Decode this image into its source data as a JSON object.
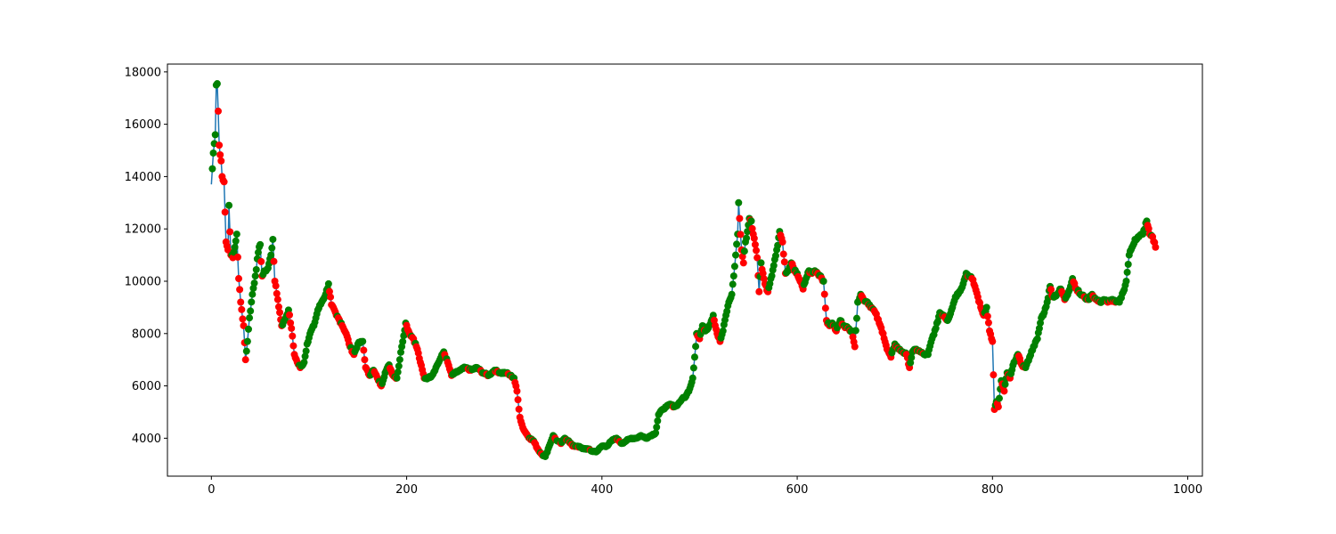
{
  "chart_data": {
    "type": "line",
    "title": "",
    "xlabel": "",
    "ylabel": "",
    "xlim": [
      -45,
      1015
    ],
    "ylim": [
      2550,
      18300
    ],
    "x_ticks": [
      0,
      200,
      400,
      600,
      800,
      1000
    ],
    "y_ticks": [
      4000,
      6000,
      8000,
      10000,
      12000,
      14000,
      16000,
      18000
    ],
    "grid": false,
    "legend": "none",
    "line_color": "#1f77b4",
    "marker_colors": {
      "up": "#008000",
      "down": "#ff0000"
    },
    "series": [
      {
        "anchors": [
          [
            0,
            13700
          ],
          [
            2,
            14900
          ],
          [
            4,
            15600
          ],
          [
            5,
            17500
          ],
          [
            6,
            17550
          ],
          [
            7,
            16500
          ],
          [
            8,
            15200
          ],
          [
            10,
            14600
          ],
          [
            11,
            14000
          ],
          [
            13,
            13800
          ],
          [
            15,
            11500
          ],
          [
            17,
            11200
          ],
          [
            18,
            12900
          ],
          [
            20,
            11000
          ],
          [
            22,
            10900
          ],
          [
            24,
            11300
          ],
          [
            26,
            11800
          ],
          [
            28,
            10100
          ],
          [
            30,
            9200
          ],
          [
            33,
            8300
          ],
          [
            35,
            7000
          ],
          [
            37,
            7700
          ],
          [
            39,
            8600
          ],
          [
            42,
            9500
          ],
          [
            45,
            10200
          ],
          [
            48,
            11100
          ],
          [
            50,
            11400
          ],
          [
            52,
            10200
          ],
          [
            55,
            10400
          ],
          [
            58,
            10500
          ],
          [
            61,
            11000
          ],
          [
            63,
            11600
          ],
          [
            65,
            10000
          ],
          [
            68,
            9300
          ],
          [
            72,
            8300
          ],
          [
            75,
            8500
          ],
          [
            79,
            8900
          ],
          [
            82,
            8200
          ],
          [
            85,
            7200
          ],
          [
            88,
            6900
          ],
          [
            91,
            6700
          ],
          [
            95,
            6900
          ],
          [
            98,
            7600
          ],
          [
            102,
            8100
          ],
          [
            105,
            8300
          ],
          [
            109,
            8900
          ],
          [
            113,
            9200
          ],
          [
            117,
            9500
          ],
          [
            120,
            9900
          ],
          [
            123,
            9100
          ],
          [
            128,
            8700
          ],
          [
            133,
            8400
          ],
          [
            138,
            8000
          ],
          [
            142,
            7500
          ],
          [
            146,
            7200
          ],
          [
            150,
            7600
          ],
          [
            155,
            7700
          ],
          [
            158,
            6700
          ],
          [
            162,
            6400
          ],
          [
            166,
            6600
          ],
          [
            170,
            6300
          ],
          [
            174,
            6000
          ],
          [
            178,
            6500
          ],
          [
            182,
            6800
          ],
          [
            186,
            6400
          ],
          [
            190,
            6300
          ],
          [
            195,
            7500
          ],
          [
            199,
            8400
          ],
          [
            203,
            8000
          ],
          [
            207,
            7800
          ],
          [
            211,
            7400
          ],
          [
            214,
            6900
          ],
          [
            218,
            6300
          ],
          [
            222,
            6300
          ],
          [
            226,
            6400
          ],
          [
            230,
            6700
          ],
          [
            234,
            7000
          ],
          [
            238,
            7300
          ],
          [
            242,
            6900
          ],
          [
            246,
            6400
          ],
          [
            250,
            6500
          ],
          [
            255,
            6600
          ],
          [
            260,
            6700
          ],
          [
            266,
            6600
          ],
          [
            272,
            6700
          ],
          [
            278,
            6500
          ],
          [
            284,
            6400
          ],
          [
            290,
            6600
          ],
          [
            296,
            6500
          ],
          [
            302,
            6500
          ],
          [
            306,
            6400
          ],
          [
            310,
            6300
          ],
          [
            313,
            5800
          ],
          [
            316,
            4800
          ],
          [
            319,
            4400
          ],
          [
            322,
            4200
          ],
          [
            326,
            4000
          ],
          [
            330,
            3900
          ],
          [
            334,
            3600
          ],
          [
            338,
            3400
          ],
          [
            342,
            3300
          ],
          [
            346,
            3700
          ],
          [
            350,
            4100
          ],
          [
            354,
            3900
          ],
          [
            358,
            3800
          ],
          [
            362,
            4000
          ],
          [
            366,
            3900
          ],
          [
            370,
            3700
          ],
          [
            375,
            3700
          ],
          [
            380,
            3600
          ],
          [
            385,
            3600
          ],
          [
            390,
            3500
          ],
          [
            395,
            3500
          ],
          [
            400,
            3700
          ],
          [
            405,
            3700
          ],
          [
            410,
            3900
          ],
          [
            415,
            4000
          ],
          [
            420,
            3800
          ],
          [
            425,
            3900
          ],
          [
            430,
            4000
          ],
          [
            435,
            4000
          ],
          [
            440,
            4100
          ],
          [
            445,
            4000
          ],
          [
            450,
            4100
          ],
          [
            455,
            4200
          ],
          [
            458,
            4900
          ],
          [
            462,
            5100
          ],
          [
            466,
            5200
          ],
          [
            470,
            5300
          ],
          [
            474,
            5200
          ],
          [
            478,
            5300
          ],
          [
            482,
            5500
          ],
          [
            486,
            5600
          ],
          [
            490,
            5900
          ],
          [
            493,
            6300
          ],
          [
            495,
            7100
          ],
          [
            497,
            8000
          ],
          [
            500,
            7800
          ],
          [
            503,
            8300
          ],
          [
            506,
            8100
          ],
          [
            510,
            8300
          ],
          [
            514,
            8700
          ],
          [
            518,
            8000
          ],
          [
            521,
            7700
          ],
          [
            524,
            8100
          ],
          [
            527,
            8700
          ],
          [
            530,
            9200
          ],
          [
            533,
            9500
          ],
          [
            535,
            10200
          ],
          [
            537,
            11000
          ],
          [
            539,
            11800
          ],
          [
            540,
            13000
          ],
          [
            541,
            12400
          ],
          [
            543,
            11200
          ],
          [
            545,
            10700
          ],
          [
            547,
            11500
          ],
          [
            549,
            11900
          ],
          [
            551,
            12400
          ],
          [
            553,
            12300
          ],
          [
            555,
            11800
          ],
          [
            557,
            11400
          ],
          [
            559,
            10900
          ],
          [
            561,
            9600
          ],
          [
            563,
            10700
          ],
          [
            565,
            10300
          ],
          [
            567,
            9900
          ],
          [
            570,
            9600
          ],
          [
            573,
            10100
          ],
          [
            576,
            10600
          ],
          [
            579,
            11200
          ],
          [
            582,
            11900
          ],
          [
            585,
            11500
          ],
          [
            588,
            10300
          ],
          [
            591,
            10400
          ],
          [
            594,
            10700
          ],
          [
            597,
            10400
          ],
          [
            600,
            10300
          ],
          [
            603,
            10000
          ],
          [
            606,
            9700
          ],
          [
            609,
            10100
          ],
          [
            612,
            10400
          ],
          [
            615,
            10300
          ],
          [
            618,
            10400
          ],
          [
            621,
            10300
          ],
          [
            624,
            10200
          ],
          [
            627,
            10000
          ],
          [
            630,
            8500
          ],
          [
            633,
            8300
          ],
          [
            636,
            8400
          ],
          [
            640,
            8100
          ],
          [
            644,
            8500
          ],
          [
            648,
            8300
          ],
          [
            652,
            8200
          ],
          [
            656,
            8100
          ],
          [
            659,
            7500
          ],
          [
            662,
            9200
          ],
          [
            665,
            9500
          ],
          [
            668,
            9300
          ],
          [
            672,
            9200
          ],
          [
            676,
            9000
          ],
          [
            680,
            8800
          ],
          [
            684,
            8400
          ],
          [
            688,
            8000
          ],
          [
            692,
            7400
          ],
          [
            696,
            7100
          ],
          [
            700,
            7600
          ],
          [
            704,
            7400
          ],
          [
            708,
            7300
          ],
          [
            712,
            7200
          ],
          [
            715,
            6700
          ],
          [
            718,
            7300
          ],
          [
            722,
            7400
          ],
          [
            726,
            7300
          ],
          [
            730,
            7200
          ],
          [
            734,
            7200
          ],
          [
            738,
            7800
          ],
          [
            742,
            8200
          ],
          [
            746,
            8800
          ],
          [
            750,
            8700
          ],
          [
            754,
            8500
          ],
          [
            758,
            8900
          ],
          [
            762,
            9400
          ],
          [
            766,
            9600
          ],
          [
            770,
            9900
          ],
          [
            773,
            10300
          ],
          [
            776,
            10200
          ],
          [
            779,
            10100
          ],
          [
            782,
            9800
          ],
          [
            785,
            9400
          ],
          [
            788,
            9000
          ],
          [
            791,
            8700
          ],
          [
            794,
            9000
          ],
          [
            797,
            8100
          ],
          [
            800,
            7700
          ],
          [
            802,
            5100
          ],
          [
            804,
            5400
          ],
          [
            806,
            5200
          ],
          [
            809,
            6200
          ],
          [
            812,
            5800
          ],
          [
            815,
            6500
          ],
          [
            818,
            6300
          ],
          [
            822,
            6900
          ],
          [
            826,
            7200
          ],
          [
            830,
            6800
          ],
          [
            834,
            6700
          ],
          [
            838,
            7100
          ],
          [
            842,
            7500
          ],
          [
            846,
            7800
          ],
          [
            850,
            8600
          ],
          [
            853,
            8800
          ],
          [
            856,
            9200
          ],
          [
            859,
            9800
          ],
          [
            862,
            9400
          ],
          [
            866,
            9500
          ],
          [
            870,
            9700
          ],
          [
            874,
            9300
          ],
          [
            878,
            9600
          ],
          [
            882,
            10100
          ],
          [
            886,
            9700
          ],
          [
            890,
            9500
          ],
          [
            894,
            9400
          ],
          [
            898,
            9300
          ],
          [
            902,
            9500
          ],
          [
            906,
            9300
          ],
          [
            910,
            9200
          ],
          [
            914,
            9300
          ],
          [
            918,
            9200
          ],
          [
            922,
            9300
          ],
          [
            926,
            9200
          ],
          [
            930,
            9200
          ],
          [
            934,
            9600
          ],
          [
            937,
            10000
          ],
          [
            940,
            11000
          ],
          [
            943,
            11300
          ],
          [
            946,
            11600
          ],
          [
            950,
            11700
          ],
          [
            954,
            11800
          ],
          [
            958,
            12300
          ],
          [
            961,
            11800
          ],
          [
            964,
            11700
          ],
          [
            967,
            11300
          ]
        ]
      }
    ]
  }
}
